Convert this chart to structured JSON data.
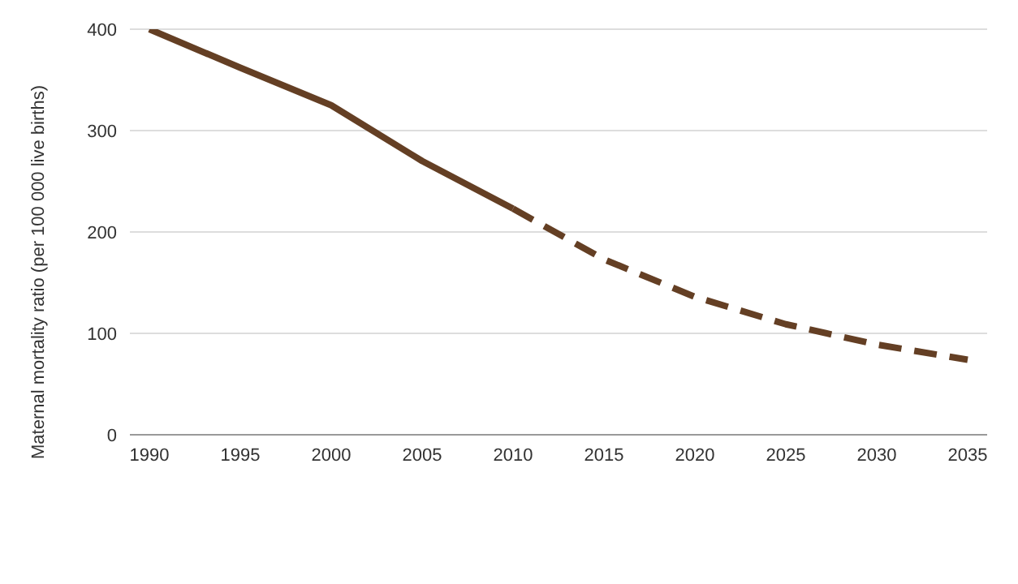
{
  "chart_data": {
    "type": "line",
    "ylabel": "Maternal mortality ratio (per 100 000  live births)",
    "categories": [
      "1990",
      "1995",
      "2000",
      "2005",
      "2010",
      "2015",
      "2020",
      "2025",
      "2030",
      "2035"
    ],
    "series": [
      {
        "color": "#643f24",
        "line_style": "solid",
        "values": [
          400,
          362,
          325,
          270,
          223,
          null,
          null,
          null,
          null,
          null
        ]
      },
      {
        "color": "#643f24",
        "line_style": "dashed",
        "values": [
          null,
          null,
          null,
          null,
          223,
          173,
          136,
          109,
          89,
          74
        ]
      }
    ],
    "ylim": [
      0,
      400
    ],
    "yticks": [
      0,
      100,
      200,
      300,
      400
    ],
    "grid": "y",
    "marker": "none",
    "legend": false
  }
}
